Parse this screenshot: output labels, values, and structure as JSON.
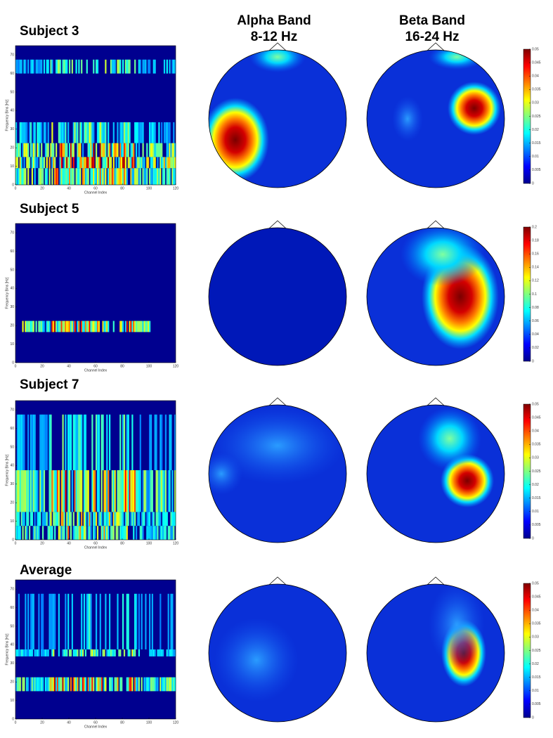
{
  "column_titles": [
    [
      "Alpha Band",
      "8-12 Hz"
    ],
    [
      "Beta Band",
      "16-24 Hz"
    ]
  ],
  "rows": [
    {
      "label": "Subject 3",
      "y_axis_label": "Frequency Bins [Hz]",
      "x_axis_label": "Channel Index",
      "xticks": [
        0,
        20,
        40,
        60,
        80,
        100,
        120
      ],
      "yticks": [
        0,
        10,
        20,
        30,
        40,
        50,
        60,
        70
      ],
      "colorbar_ticks": [
        0,
        0.005,
        0.01,
        0.015,
        0.02,
        0.025,
        0.03,
        0.035,
        0.04,
        0.045,
        0.05
      ]
    },
    {
      "label": "Subject 5",
      "y_axis_label": "Frequency Bins [Hz]",
      "x_axis_label": "Channel Index",
      "xticks": [
        0,
        20,
        40,
        60,
        80,
        100,
        120
      ],
      "yticks": [
        0,
        10,
        20,
        30,
        40,
        50,
        60,
        70
      ],
      "colorbar_ticks": [
        0,
        0.02,
        0.04,
        0.06,
        0.08,
        0.1,
        0.12,
        0.14,
        0.16,
        0.18,
        0.2
      ]
    },
    {
      "label": "Subject 7",
      "y_axis_label": "Frequency Bins [Hz]",
      "x_axis_label": "Channel Index",
      "xticks": [
        0,
        20,
        40,
        60,
        80,
        100,
        120
      ],
      "yticks": [
        0,
        10,
        20,
        30,
        40,
        50,
        60,
        70
      ],
      "colorbar_ticks": [
        0,
        0.005,
        0.01,
        0.015,
        0.02,
        0.025,
        0.03,
        0.035,
        0.04,
        0.045,
        0.05
      ]
    },
    {
      "label": "Average",
      "y_axis_label": "Frequency Bins [Hz]",
      "x_axis_label": "Channel Index",
      "xticks": [
        0,
        20,
        40,
        60,
        80,
        100,
        120
      ],
      "yticks": [
        0,
        10,
        20,
        30,
        40,
        50,
        60,
        70
      ],
      "colorbar_ticks": [
        0,
        0.005,
        0.01,
        0.015,
        0.02,
        0.025,
        0.03,
        0.035,
        0.04,
        0.045,
        0.05
      ]
    }
  ]
}
